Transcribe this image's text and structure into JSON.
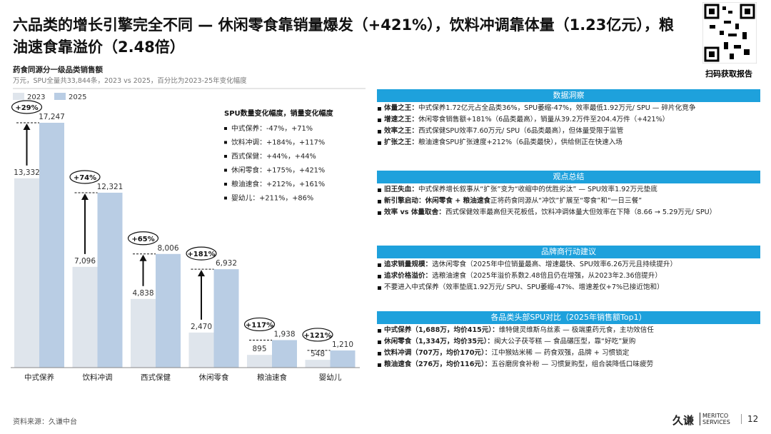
{
  "header": {
    "title": "六品类的增长引擎完全不同 — 休闲零食靠销量爆发（+421%），饮料冲调靠体量（1.23亿元），粮油速食靠溢价（2.48倍）",
    "qr_caption": "扫码获取报告"
  },
  "chart_data": {
    "type": "bar",
    "title": "药食同源分一级品类销售额",
    "subtitle": "万元，SPU全量共33,844条，2023 vs 2025，百分比为2023-25年变化幅度",
    "categories": [
      "中式保养",
      "饮料冲调",
      "西式保健",
      "休闲零食",
      "粮油速食",
      "婴幼儿"
    ],
    "series": [
      {
        "name": "2023",
        "color": "#dfe5ec",
        "values": [
          13332,
          7096,
          4838,
          2470,
          895,
          548
        ],
        "value_labels": [
          "13,332",
          "7,096",
          "4,838",
          "2,470",
          "895",
          "548"
        ]
      },
      {
        "name": "2025",
        "color": "#b9cde4",
        "values": [
          17247,
          12321,
          8006,
          6932,
          1938,
          1210
        ],
        "value_labels": [
          "17,247",
          "12,321",
          "8,006",
          "6,932",
          "1,938",
          "1,210"
        ]
      }
    ],
    "growth_labels": [
      "+29%",
      "+74%",
      "+65%",
      "+181%",
      "+117%",
      "+121%"
    ],
    "note_title": "SPU数量变化幅度，销量变化幅度",
    "notes": [
      "中式保养：-47%，+71%",
      "饮料冲调：+184%，+117%",
      "西式保健：+44%，+44%",
      "休闲零食：+175%，+421%",
      "粮油速食：+212%，+161%",
      "婴幼儿：+211%，+86%"
    ]
  },
  "panels": [
    {
      "title": "数据洞察",
      "items": [
        {
          "label": "体量之王：",
          "text": "中式保养1.72亿元占全品类36%，SPU萎缩-47%，效率最低1.92万元/ SPU — 碎片化竞争"
        },
        {
          "label": "增速之王：",
          "text": "休闲零食销售额+181%（6品类最高），销量从39.2万件至204.4万件（+421%）"
        },
        {
          "label": "效率之王：",
          "text": "西式保健SPU效率7.60万元/ SPU（6品类最高），但体量受限于监管"
        },
        {
          "label": "扩张之王：",
          "text": "粮油速食SPU扩张速度+212%（6品类最快），供给侧正在快速入场"
        }
      ]
    },
    {
      "title": "观点总结",
      "items": [
        {
          "label": "旧王失血：",
          "text": "中式保养增长叙事从“扩张”变为“收缩中的优胜劣汰” — SPU效率1.92万元垫底"
        },
        {
          "label": "新引擎启动：休闲零食 + 粮油速食",
          "text": "正将药食同源从“冲饮”扩展至“零食”和“一日三餐”"
        },
        {
          "label": "效率 vs 体量取舍：",
          "text": "西式保健效率最高但天花板低，饮料冲调体量大但效率在下降（8.66 → 5.29万元/ SPU）"
        }
      ]
    },
    {
      "title": "品牌商行动建议",
      "items": [
        {
          "label": "追求销量规模：",
          "text": "选休闲零食（2025年中位销量最高、增速最快、SPU效率6.26万元且持续提升）"
        },
        {
          "label": "追求价格溢价：",
          "text": "选粮油速食（2025年溢价系数2.48倍且仍在增强，从2023年2.36倍提升）"
        },
        {
          "text": "不要进入中式保养（效率垫底1.92万元/ SPU、SPU萎缩-47%、增速差仅+7%已接近饱和）"
        }
      ]
    },
    {
      "title": "各品类头部SPU对比（2025年销售额Top1）",
      "items": [
        {
          "label": "中式保养（1,688万，均价415元）：",
          "text": "维特健灵维斯乌丝素 — 极端重药元食，主功效信任"
        },
        {
          "label": "休闲零食（1,334万，均价35元）：",
          "text": "闽大公子茯苓糕 — 食品碾压型，靠“好吃”复购"
        },
        {
          "label": "饮料冲调（707万，均价170元）：",
          "text": "江中猴姑米稀 — 药食双强，品牌 + 习惯锁定"
        },
        {
          "label": "粮油速食（276万，均价116元）：",
          "text": "五谷磨房食补粉 — 习惯复购型，组合装降低口味疲劳"
        }
      ]
    }
  ],
  "footer": {
    "source": "资料来源：久谦中台",
    "logo": "久谦",
    "logo_en": "MERITCO SERVICES",
    "page": "12"
  }
}
